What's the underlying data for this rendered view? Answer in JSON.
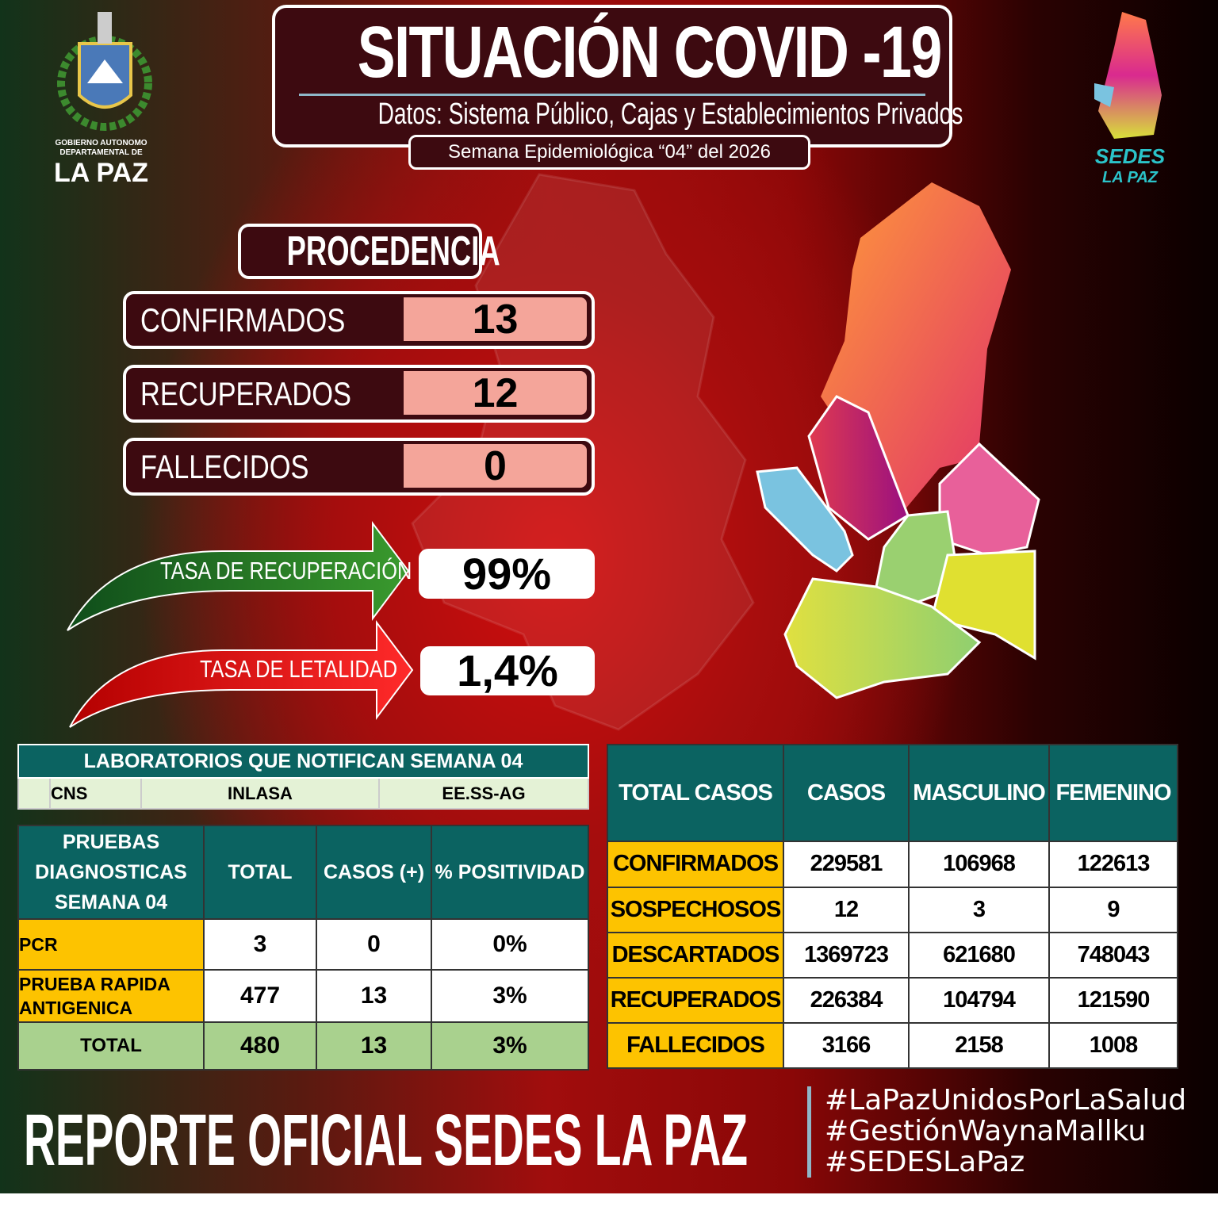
{
  "header": {
    "title": "SITUACIÓN COVID -19",
    "subtitle": "Datos: Sistema Público, Cajas y Establecimientos Privados",
    "week": "Semana  Epidemiológica “04” del  2026"
  },
  "logos": {
    "left": "GOBIERNO AUTONOMO DEPARTAMENTAL DE LA PAZ",
    "right": "SEDES LA PAZ"
  },
  "procedencia": {
    "title": "PROCEDENCIA",
    "items": [
      {
        "label": "CONFIRMADOS",
        "value": "13"
      },
      {
        "label": "RECUPERADOS",
        "value": "12"
      },
      {
        "label": "FALLECIDOS",
        "value": "0"
      }
    ]
  },
  "rates": {
    "recovery_label": "TASA DE RECUPERACIÓN",
    "recovery_value": "99%",
    "lethality_label": "TASA DE LETALIDAD",
    "lethality_value": "1,4%"
  },
  "colors": {
    "teal": "#0b6361",
    "gold": "#fdc300",
    "light_green": "#a9d18e",
    "pink": "#f4a59a",
    "dark_panel": "#3d0a10"
  },
  "labs": {
    "title": "LABORATORIOS QUE NOTIFICAN SEMANA 04",
    "items": [
      "CNS",
      "INLASA",
      "EE.SS-AG"
    ]
  },
  "pruebas": {
    "headers": [
      "PRUEBAS DIAGNOSTICAS SEMANA 04",
      "TOTAL",
      "CASOS (+)",
      "% POSITIVIDAD"
    ],
    "rows": [
      [
        "PCR",
        "3",
        "0",
        "0%"
      ],
      [
        "PRUEBA RAPIDA ANTIGENICA",
        "477",
        "13",
        "3%"
      ]
    ],
    "total": [
      "TOTAL",
      "480",
      "13",
      "3%"
    ]
  },
  "total_casos": {
    "headers": [
      "TOTAL CASOS",
      "CASOS",
      "MASCULINO",
      "FEMENINO"
    ],
    "rows": [
      [
        "CONFIRMADOS",
        "229581",
        "106968",
        "122613"
      ],
      [
        "SOSPECHOSOS",
        "12",
        "3",
        "9"
      ],
      [
        "DESCARTADOS",
        "1369723",
        "621680",
        "748043"
      ],
      [
        "RECUPERADOS",
        "226384",
        "104794",
        "121590"
      ],
      [
        "FALLECIDOS",
        "3166",
        "2158",
        "1008"
      ]
    ]
  },
  "footer": {
    "title": "REPORTE OFICIAL SEDES LA PAZ",
    "hashtags": [
      "#LaPazUnidosPorLaSalud",
      "#GestiónWaynaMallku",
      "#SEDESLaPaz"
    ]
  }
}
